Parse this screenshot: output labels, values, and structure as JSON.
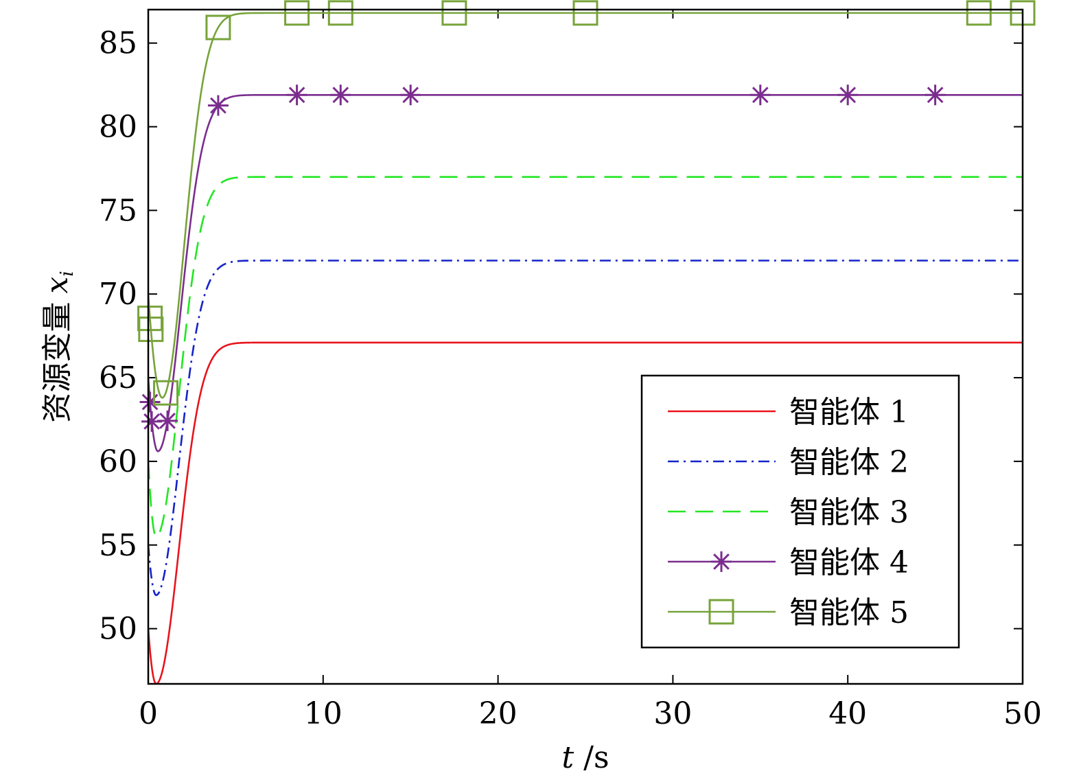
{
  "chart_data": {
    "type": "line",
    "title": "",
    "xlabel_var": "t",
    "xlabel_unit": "/s",
    "ylabel_text": "资源变量",
    "ylabel_var": "x",
    "ylabel_sub": "i",
    "xlim": [
      0,
      50
    ],
    "ylim": [
      46.7,
      87.0
    ],
    "xticks": [
      0,
      10,
      20,
      30,
      40,
      50
    ],
    "yticks": [
      50,
      55,
      60,
      65,
      70,
      75,
      80,
      85
    ],
    "grid": false,
    "legend_position": "bottom-right",
    "series": [
      {
        "name": "智能体 1",
        "color": "#e8141c",
        "dash": "",
        "marker": "none",
        "x0": 50.0,
        "xmin": 46.7,
        "tmin": 0.45,
        "xf": 67.1,
        "tau": 1.3,
        "markers": []
      },
      {
        "name": "智能体 2",
        "color": "#1423c8",
        "dash": "16 7 3 7",
        "marker": "none",
        "x0": 55.0,
        "xmin": 52.0,
        "tmin": 0.45,
        "xf": 72.0,
        "tau": 1.3,
        "markers": []
      },
      {
        "name": "智能体 3",
        "color": "#22e622",
        "dash": "26 14",
        "marker": "none",
        "x0": 60.0,
        "xmin": 55.5,
        "tmin": 0.45,
        "xf": 77.0,
        "tau": 1.3,
        "markers": []
      },
      {
        "name": "智能体 4",
        "color": "#7b2d8e",
        "dash": "",
        "marker": "star",
        "x0": 65.0,
        "xmin": 60.6,
        "tmin": 0.55,
        "xf": 81.9,
        "tau": 1.3,
        "markers": [
          0.1,
          0.2,
          1.1,
          4.0,
          8.5,
          11,
          15,
          35,
          40,
          45
        ]
      },
      {
        "name": "智能体 5",
        "color": "#77a33a",
        "dash": "",
        "marker": "square",
        "x0": 70.0,
        "xmin": 63.8,
        "tmin": 0.8,
        "xf": 86.8,
        "tau": 1.25,
        "markers": [
          0.1,
          0.15,
          1.0,
          4.0,
          8.5,
          11,
          17.5,
          25,
          47.5,
          50
        ]
      }
    ]
  }
}
